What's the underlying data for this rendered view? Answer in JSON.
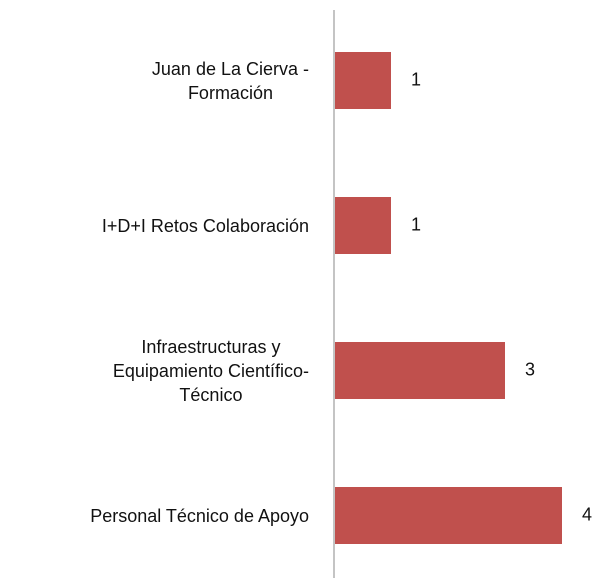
{
  "chart_data": {
    "type": "bar",
    "orientation": "horizontal",
    "categories": [
      "Juan de La Cierva -\nFormación",
      "I+D+I Retos Colaboración",
      "Infraestructuras y\nEquipamiento Científico-\nTécnico",
      "Personal Técnico de Apoyo"
    ],
    "values": [
      1,
      1,
      3,
      4
    ],
    "color": "#c0504d"
  }
}
